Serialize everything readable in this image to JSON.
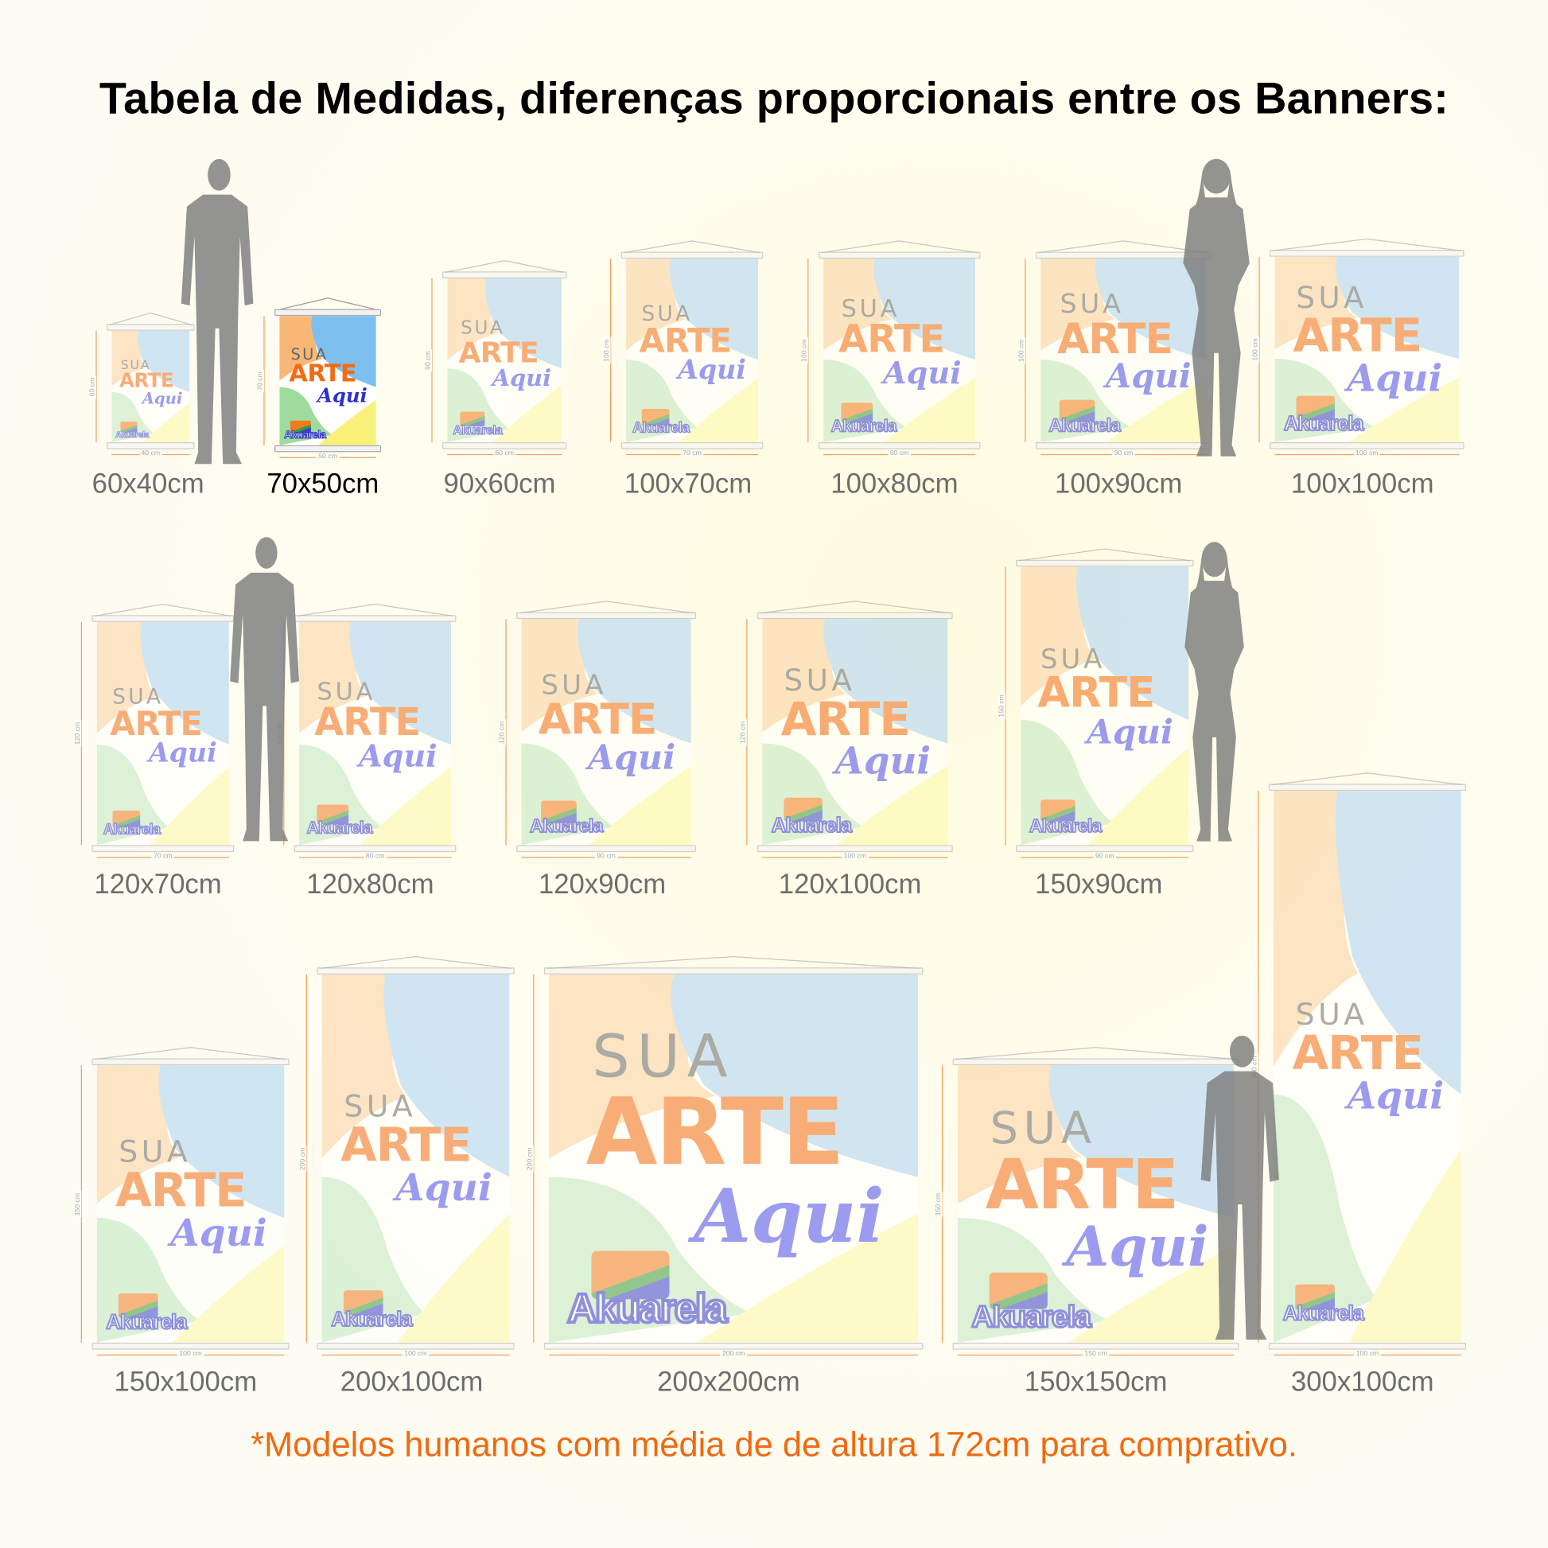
{
  "title": "Tabela de Medidas, diferenças proporcionais entre os Banners:",
  "footnote": "*Modelos humanos com média de de altura 172cm para comprativo.",
  "banner_art": {
    "line1": "SUA",
    "line2": "ARTE",
    "line3": "Aqui",
    "logo": "Akuarela"
  },
  "colors": {
    "peach": "#fbcf9f",
    "blue": "#a9d2f2",
    "green": "#bfe8bf",
    "yellow": "#fbf7a6",
    "footnote": "#f06a0f",
    "silhouette": "#7c7c7c"
  },
  "banners": [
    {
      "size_label": "60x40cm",
      "width_label": "40 cm",
      "height_label": "60 cm",
      "highlighted": false
    },
    {
      "size_label": "70x50cm",
      "width_label": "50 cm",
      "height_label": "70 cm",
      "highlighted": true
    },
    {
      "size_label": "90x60cm",
      "width_label": "60 cm",
      "height_label": "90 cm",
      "highlighted": false
    },
    {
      "size_label": "100x70cm",
      "width_label": "70 cm",
      "height_label": "100 cm",
      "highlighted": false
    },
    {
      "size_label": "100x80cm",
      "width_label": "80 cm",
      "height_label": "100 cm",
      "highlighted": false
    },
    {
      "size_label": "100x90cm",
      "width_label": "90 cm",
      "height_label": "100 cm",
      "highlighted": false
    },
    {
      "size_label": "100x100cm",
      "width_label": "100 cm",
      "height_label": "100 cm",
      "highlighted": false
    },
    {
      "size_label": "120x70cm",
      "width_label": "70 cm",
      "height_label": "120 cm",
      "highlighted": false
    },
    {
      "size_label": "120x80cm",
      "width_label": "80 cm",
      "height_label": "120 cm",
      "highlighted": false
    },
    {
      "size_label": "120x90cm",
      "width_label": "90 cm",
      "height_label": "120 cm",
      "highlighted": false
    },
    {
      "size_label": "120x100cm",
      "width_label": "100 cm",
      "height_label": "120 cm",
      "highlighted": false
    },
    {
      "size_label": "150x90cm",
      "width_label": "90 cm",
      "height_label": "150 cm",
      "highlighted": false
    },
    {
      "size_label": "150x100cm",
      "width_label": "100 cm",
      "height_label": "150 cm",
      "highlighted": false
    },
    {
      "size_label": "200x100cm",
      "width_label": "100 cm",
      "height_label": "200 cm",
      "highlighted": false
    },
    {
      "size_label": "200x200cm",
      "width_label": "200 cm",
      "height_label": "200 cm",
      "highlighted": false
    },
    {
      "size_label": "150x150cm",
      "width_label": "150 cm",
      "height_label": "150 cm",
      "highlighted": false
    },
    {
      "size_label": "300x100cm",
      "width_label": "100 cm",
      "height_label": "300 cm",
      "highlighted": false
    }
  ],
  "human_models": [
    "man",
    "woman",
    "man",
    "woman",
    "man"
  ]
}
